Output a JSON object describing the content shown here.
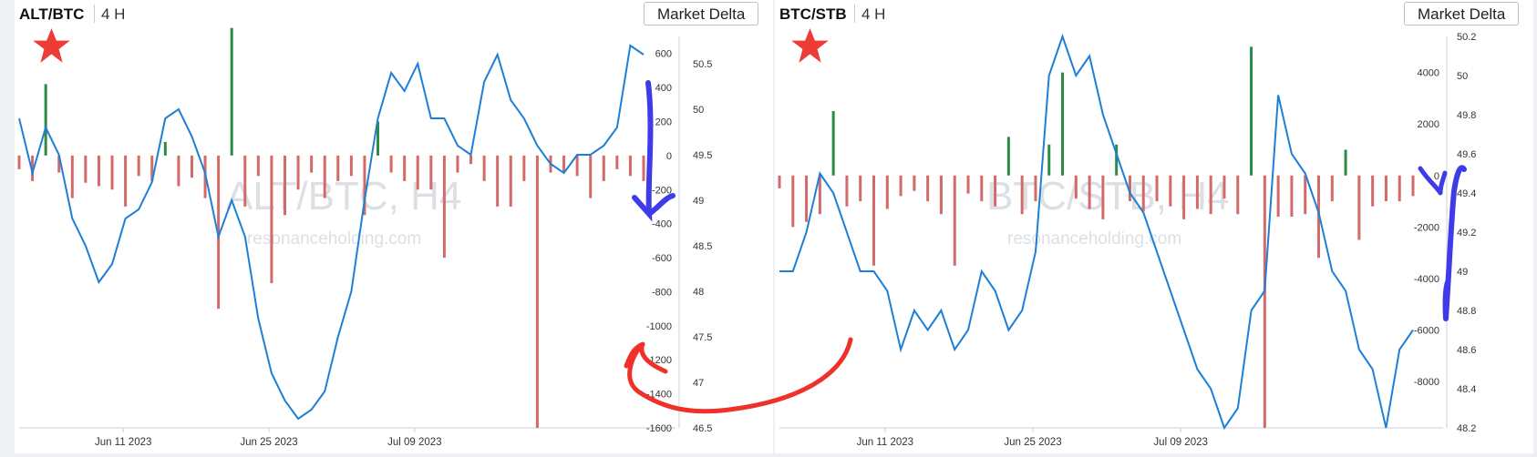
{
  "panels": [
    {
      "symbol": "ALT/BTC",
      "timeframe": "4 H",
      "button_label": "Market Delta",
      "watermark_title": "ALT/BTC, H4",
      "watermark_site": "resonanceholding.com"
    },
    {
      "symbol": "BTC/STB",
      "timeframe": "4 H",
      "button_label": "Market Delta",
      "watermark_title": "BTC/STB, H4",
      "watermark_site": "resonanceholding.com"
    }
  ],
  "colors": {
    "price_line": "#1e7fd6",
    "delta_positive": "#2e8b47",
    "delta_negative": "#d26a6a",
    "annotation_red": "#f0302a",
    "annotation_blue": "#3f3be8",
    "star": "#ef3b36"
  },
  "icons": [
    "star-icon",
    "red-curved-arrow",
    "blue-down-arrow",
    "blue-up-arrow"
  ],
  "chart_data": [
    {
      "type": "line",
      "x_start": "2023-06-01",
      "x_end": "2023-07-31",
      "x_tick_labels": [
        "Jun 11 2023",
        "Jun 25 2023",
        "Jul 09 2023"
      ],
      "x_tick_dates": [
        "2023-06-11",
        "2023-06-25",
        "2023-07-09"
      ],
      "y_price_ticks": [
        50.5,
        50,
        49.5,
        49,
        48.5,
        48,
        47.5,
        47,
        46.5
      ],
      "y_price_range": [
        46.5,
        50.8
      ],
      "y_delta_ticks": [
        600,
        400,
        200,
        0,
        -200,
        -400,
        -600,
        -800,
        -1000,
        -1200,
        -1400,
        -1600
      ],
      "y_delta_range": [
        -1600,
        700
      ],
      "series": [
        {
          "kind": "price",
          "points": [
            [
              0,
              49.9
            ],
            [
              1,
              49.3
            ],
            [
              2,
              49.8
            ],
            [
              3,
              49.5
            ],
            [
              4,
              48.8
            ],
            [
              5,
              48.5
            ],
            [
              6,
              48.1
            ],
            [
              7,
              48.3
            ],
            [
              8,
              48.8
            ],
            [
              9,
              48.9
            ],
            [
              10,
              49.2
            ],
            [
              11,
              49.9
            ],
            [
              12,
              50
            ],
            [
              13,
              49.7
            ],
            [
              14,
              49.3
            ],
            [
              15,
              48.6
            ],
            [
              16,
              49
            ],
            [
              17,
              48.6
            ],
            [
              18,
              47.7
            ],
            [
              19,
              47.1
            ],
            [
              20,
              46.8
            ],
            [
              21,
              46.6
            ],
            [
              22,
              46.7
            ],
            [
              23,
              46.9
            ],
            [
              24,
              47.5
            ],
            [
              25,
              48
            ],
            [
              26,
              49
            ],
            [
              27,
              49.9
            ],
            [
              28,
              50.4
            ],
            [
              29,
              50.2
            ],
            [
              30,
              50.5
            ],
            [
              31,
              49.9
            ],
            [
              32,
              49.9
            ],
            [
              33,
              49.6
            ],
            [
              34,
              49.5
            ],
            [
              35,
              50.3
            ],
            [
              36,
              50.6
            ],
            [
              37,
              50.1
            ],
            [
              38,
              49.9
            ],
            [
              39,
              49.6
            ],
            [
              40,
              49.4
            ],
            [
              41,
              49.3
            ],
            [
              42,
              49.5
            ],
            [
              43,
              49.5
            ],
            [
              44,
              49.6
            ],
            [
              45,
              49.8
            ],
            [
              46,
              50.7
            ],
            [
              47,
              50.6
            ]
          ]
        },
        {
          "kind": "delta_bars",
          "points": [
            [
              0,
              -80
            ],
            [
              1,
              -150
            ],
            [
              2,
              420
            ],
            [
              3,
              -100
            ],
            [
              4,
              -250
            ],
            [
              5,
              -160
            ],
            [
              6,
              -180
            ],
            [
              7,
              -200
            ],
            [
              8,
              -300
            ],
            [
              9,
              -120
            ],
            [
              10,
              -150
            ],
            [
              11,
              80
            ],
            [
              12,
              -180
            ],
            [
              13,
              -130
            ],
            [
              14,
              -250
            ],
            [
              15,
              -900
            ],
            [
              16,
              750
            ],
            [
              17,
              -300
            ],
            [
              18,
              -120
            ],
            [
              19,
              -750
            ],
            [
              20,
              -350
            ],
            [
              21,
              -200
            ],
            [
              22,
              -100
            ],
            [
              23,
              -250
            ],
            [
              24,
              -150
            ],
            [
              25,
              -120
            ],
            [
              26,
              -350
            ],
            [
              27,
              200
            ],
            [
              28,
              -100
            ],
            [
              29,
              -150
            ],
            [
              30,
              -200
            ],
            [
              31,
              -200
            ],
            [
              32,
              -600
            ],
            [
              33,
              -100
            ],
            [
              34,
              -50
            ],
            [
              35,
              -150
            ],
            [
              36,
              -300
            ],
            [
              37,
              -300
            ],
            [
              38,
              -150
            ],
            [
              39,
              -1600
            ],
            [
              40,
              -100
            ],
            [
              41,
              -100
            ],
            [
              42,
              -120
            ],
            [
              43,
              -250
            ],
            [
              44,
              -150
            ],
            [
              45,
              -80
            ],
            [
              46,
              -120
            ],
            [
              47,
              -150
            ]
          ]
        }
      ]
    },
    {
      "type": "line",
      "x_start": "2023-06-01",
      "x_end": "2023-07-31",
      "x_tick_labels": [
        "Jun 11 2023",
        "Jun 25 2023",
        "Jul 09 2023"
      ],
      "x_tick_dates": [
        "2023-06-11",
        "2023-06-25",
        "2023-07-09"
      ],
      "y_price_ticks": [
        50.2,
        50,
        49.8,
        49.6,
        49.4,
        49.2,
        49,
        48.8,
        48.6,
        48.4,
        48.2
      ],
      "y_price_range": [
        48.2,
        50.2
      ],
      "y_delta_ticks": [
        4000,
        2000,
        0,
        -2000,
        -4000,
        -6000,
        -8000
      ],
      "y_delta_range": [
        -9800,
        5400
      ],
      "series": [
        {
          "kind": "price",
          "points": [
            [
              0,
              49
            ],
            [
              1,
              49
            ],
            [
              2,
              49.2
            ],
            [
              3,
              49.5
            ],
            [
              4,
              49.4
            ],
            [
              5,
              49.2
            ],
            [
              6,
              49
            ],
            [
              7,
              49
            ],
            [
              8,
              48.9
            ],
            [
              9,
              48.6
            ],
            [
              10,
              48.8
            ],
            [
              11,
              48.7
            ],
            [
              12,
              48.8
            ],
            [
              13,
              48.6
            ],
            [
              14,
              48.7
            ],
            [
              15,
              49
            ],
            [
              16,
              48.9
            ],
            [
              17,
              48.7
            ],
            [
              18,
              48.8
            ],
            [
              19,
              49.1
            ],
            [
              20,
              50
            ],
            [
              21,
              50.2
            ],
            [
              22,
              50
            ],
            [
              23,
              50.1
            ],
            [
              24,
              49.8
            ],
            [
              25,
              49.6
            ],
            [
              26,
              49.4
            ],
            [
              27,
              49.3
            ],
            [
              28,
              49.1
            ],
            [
              29,
              48.9
            ],
            [
              30,
              48.7
            ],
            [
              31,
              48.5
            ],
            [
              32,
              48.4
            ],
            [
              33,
              48.2
            ],
            [
              34,
              48.3
            ],
            [
              35,
              48.8
            ],
            [
              36,
              48.9
            ],
            [
              37,
              49.9
            ],
            [
              38,
              49.6
            ],
            [
              39,
              49.5
            ],
            [
              40,
              49.3
            ],
            [
              41,
              49
            ],
            [
              42,
              48.9
            ],
            [
              43,
              48.6
            ],
            [
              44,
              48.5
            ],
            [
              45,
              48.2
            ],
            [
              46,
              48.6
            ],
            [
              47,
              48.7
            ]
          ]
        },
        {
          "kind": "delta_bars",
          "points": [
            [
              0,
              -500
            ],
            [
              1,
              -2000
            ],
            [
              2,
              -1800
            ],
            [
              3,
              -1500
            ],
            [
              4,
              2500
            ],
            [
              5,
              -1200
            ],
            [
              6,
              -1000
            ],
            [
              7,
              -3500
            ],
            [
              8,
              -1300
            ],
            [
              9,
              -800
            ],
            [
              10,
              -600
            ],
            [
              11,
              -1000
            ],
            [
              12,
              -1500
            ],
            [
              13,
              -3500
            ],
            [
              14,
              -700
            ],
            [
              15,
              -1000
            ],
            [
              16,
              -1200
            ],
            [
              17,
              1500
            ],
            [
              18,
              -1500
            ],
            [
              19,
              -1000
            ],
            [
              20,
              1200
            ],
            [
              21,
              4000
            ],
            [
              22,
              -900
            ],
            [
              23,
              -1300
            ],
            [
              24,
              -1700
            ],
            [
              25,
              1200
            ],
            [
              26,
              -1000
            ],
            [
              27,
              -1400
            ],
            [
              28,
              -1000
            ],
            [
              29,
              -1200
            ],
            [
              30,
              -1700
            ],
            [
              31,
              -1300
            ],
            [
              32,
              -1500
            ],
            [
              33,
              -900
            ],
            [
              34,
              -1500
            ],
            [
              35,
              5000
            ],
            [
              36,
              -9800
            ],
            [
              37,
              -1600
            ],
            [
              38,
              -1600
            ],
            [
              39,
              -1500
            ],
            [
              40,
              -3200
            ],
            [
              41,
              -1000
            ],
            [
              42,
              1000
            ],
            [
              43,
              -2500
            ],
            [
              44,
              -1200
            ],
            [
              45,
              -1000
            ],
            [
              46,
              -1000
            ],
            [
              47,
              -800
            ]
          ]
        }
      ]
    }
  ]
}
